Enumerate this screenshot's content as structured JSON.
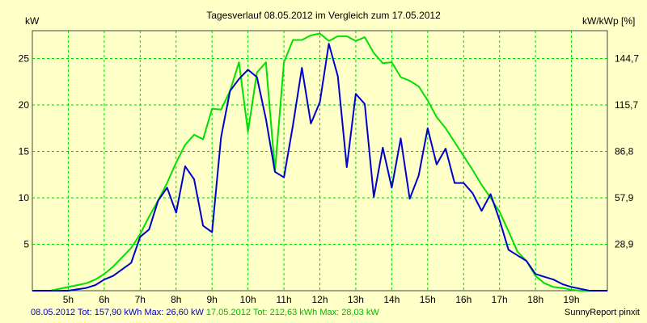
{
  "chart_data": {
    "type": "line",
    "title": "Tagesverlauf 08.05.2012 im Vergleich zum 17.05.2012",
    "ylabel_left": "kW",
    "ylabel_right": "kW/kWp [%]",
    "x_ticks": [
      "5h",
      "6h",
      "7h",
      "8h",
      "9h",
      "10h",
      "11h",
      "12h",
      "13h",
      "14h",
      "15h",
      "16h",
      "17h",
      "18h",
      "19h"
    ],
    "y_ticks_left": [
      "5",
      "10",
      "15",
      "20",
      "25"
    ],
    "y_ticks_right": [
      "28,9",
      "57,9",
      "86,8",
      "115,7",
      "144,7"
    ],
    "xlim": [
      4.0,
      20.0
    ],
    "ylim": [
      0,
      28
    ],
    "grid": true,
    "series": [
      {
        "name": "08.05.2012",
        "color": "#0000cc",
        "x": [
          4.0,
          4.5,
          5.0,
          5.5,
          5.75,
          6.0,
          6.25,
          6.5,
          6.75,
          7.0,
          7.25,
          7.5,
          7.75,
          8.0,
          8.25,
          8.5,
          8.75,
          9.0,
          9.25,
          9.5,
          9.75,
          10.0,
          10.25,
          10.5,
          10.75,
          11.0,
          11.25,
          11.5,
          11.75,
          12.0,
          12.25,
          12.5,
          12.75,
          13.0,
          13.25,
          13.5,
          13.75,
          14.0,
          14.25,
          14.5,
          14.75,
          15.0,
          15.25,
          15.5,
          15.75,
          16.0,
          16.25,
          16.5,
          16.75,
          17.0,
          17.25,
          17.5,
          17.75,
          18.0,
          18.25,
          18.5,
          18.75,
          19.0,
          19.25,
          19.5,
          19.75,
          20.0
        ],
        "y": [
          0,
          0,
          0,
          0.3,
          0.6,
          1.2,
          1.6,
          2.3,
          3.0,
          5.8,
          6.6,
          9.7,
          11.1,
          8.4,
          13.4,
          12.0,
          7.0,
          6.3,
          16.5,
          21.5,
          22.8,
          23.8,
          23.0,
          18.5,
          12.8,
          12.2,
          17.8,
          24.0,
          18.0,
          20.3,
          26.6,
          23.1,
          13.3,
          21.2,
          20.1,
          10.1,
          15.4,
          11.1,
          16.4,
          9.9,
          12.4,
          17.5,
          13.6,
          15.3,
          11.6,
          11.6,
          10.5,
          8.6,
          10.4,
          7.6,
          4.4,
          3.8,
          3.2,
          1.8,
          1.5,
          1.2,
          0.7,
          0.4,
          0.2,
          0,
          0,
          0
        ]
      },
      {
        "name": "17.05.2012",
        "color": "#00e000",
        "x": [
          4.0,
          4.5,
          5.0,
          5.5,
          5.75,
          6.0,
          6.25,
          6.5,
          6.75,
          7.0,
          7.25,
          7.5,
          7.75,
          8.0,
          8.25,
          8.5,
          8.75,
          9.0,
          9.25,
          9.5,
          9.75,
          10.0,
          10.25,
          10.5,
          10.75,
          11.0,
          11.25,
          11.5,
          11.75,
          12.0,
          12.25,
          12.5,
          12.75,
          13.0,
          13.25,
          13.5,
          13.75,
          14.0,
          14.25,
          14.5,
          14.75,
          15.0,
          15.25,
          15.5,
          15.75,
          16.0,
          16.25,
          16.5,
          16.75,
          17.0,
          17.25,
          17.5,
          17.75,
          18.0,
          18.25,
          18.5,
          18.75,
          19.0,
          19.25,
          19.5,
          19.75,
          20.0
        ],
        "y": [
          0,
          0,
          0.4,
          0.8,
          1.2,
          1.8,
          2.6,
          3.6,
          4.6,
          6.1,
          8.0,
          9.7,
          11.6,
          13.8,
          15.7,
          16.8,
          16.3,
          19.6,
          19.5,
          21.5,
          24.6,
          17.1,
          23.5,
          24.6,
          12.9,
          24.6,
          27.0,
          27.0,
          27.5,
          27.7,
          26.9,
          27.4,
          27.4,
          26.9,
          27.3,
          25.6,
          24.5,
          24.6,
          23.0,
          22.6,
          22.0,
          20.5,
          18.7,
          17.5,
          16.0,
          14.5,
          13.0,
          11.4,
          10.0,
          8.5,
          6.4,
          4.2,
          3.2,
          1.6,
          0.8,
          0.4,
          0.3,
          0.1,
          0,
          0,
          0,
          0
        ]
      }
    ]
  },
  "footer": {
    "s1_date": "08.05.2012",
    "s1_stats": "Tot: 157,90 kWh Max: 26,60 kW",
    "s2_date": "17.05.2012",
    "s2_stats": "Tot: 212,63 kWh Max: 28,03 kW",
    "credit": "SunnyReport pinxit"
  }
}
